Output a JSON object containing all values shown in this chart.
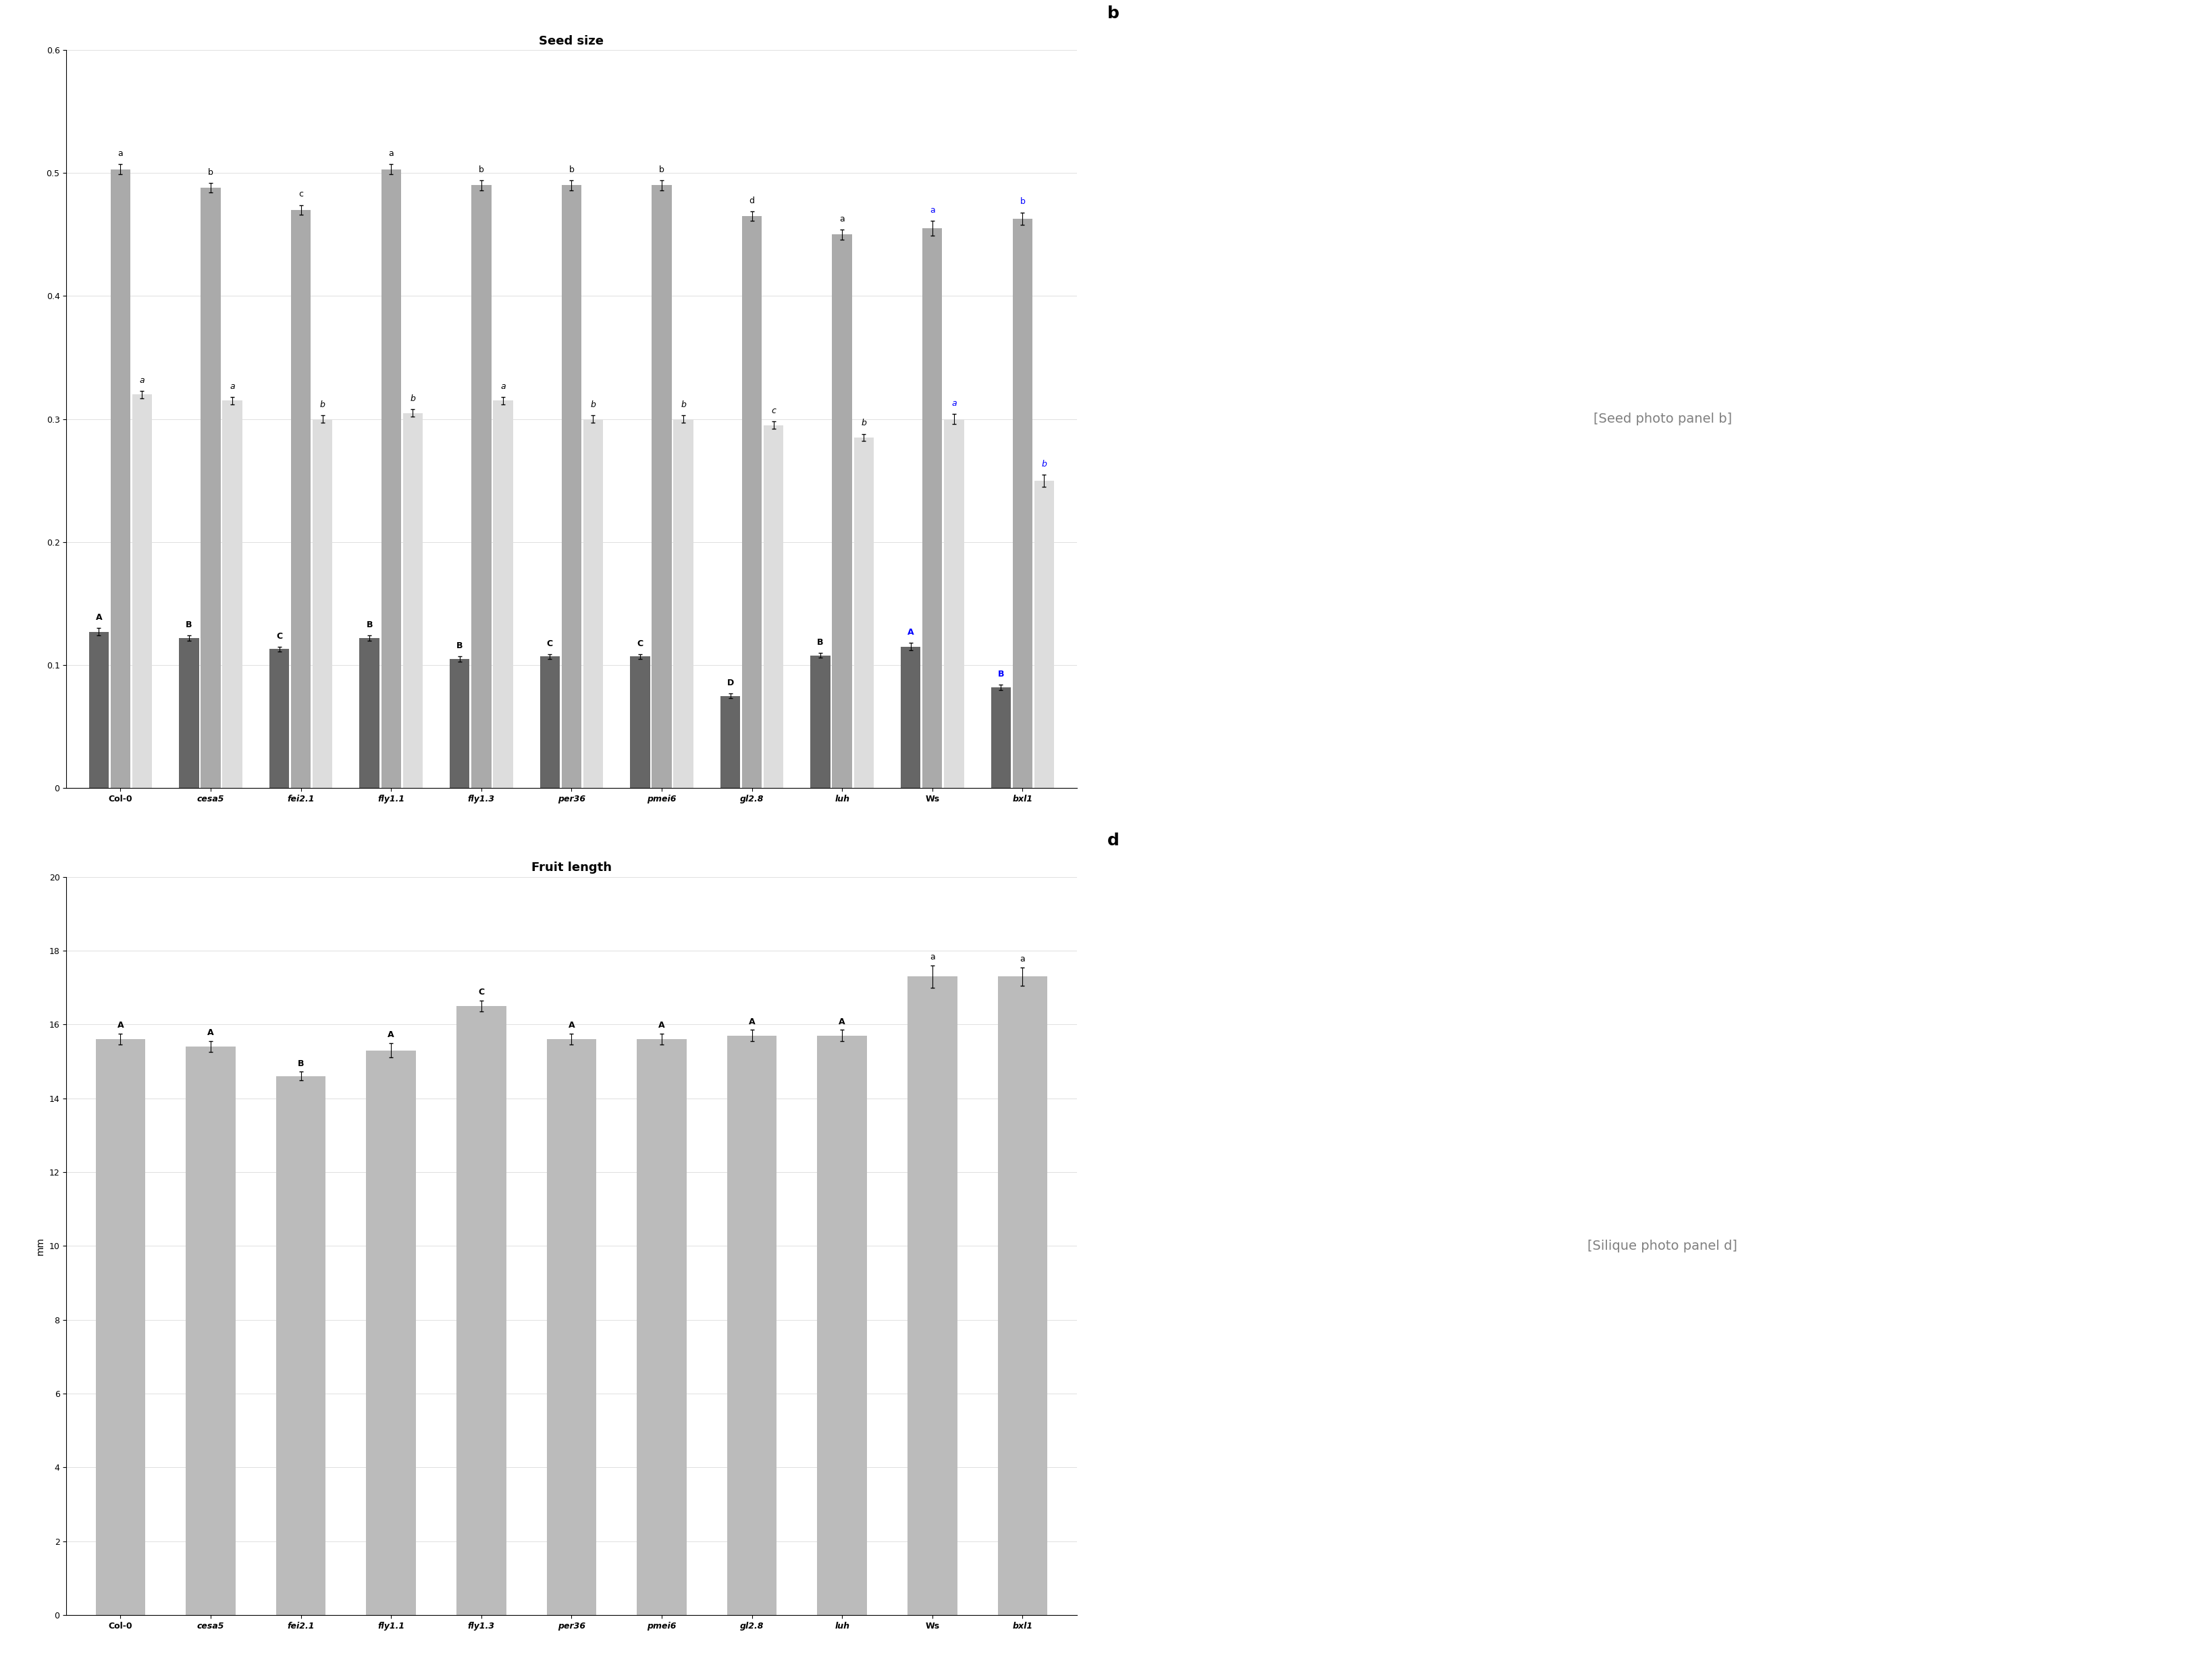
{
  "categories_a": [
    "Col-0",
    "cesa5",
    "fei2.1",
    "fly1.1",
    "fly1.3",
    "per36",
    "pmei6",
    "gl2.8",
    "luh",
    "Ws",
    "bxl1"
  ],
  "area_values": [
    0.127,
    0.122,
    0.113,
    0.122,
    0.105,
    0.107,
    0.107,
    0.075,
    0.108,
    0.115,
    0.082
  ],
  "length_values": [
    0.503,
    0.488,
    0.47,
    0.503,
    0.49,
    0.49,
    0.49,
    0.465,
    0.45,
    0.455,
    0.463
  ],
  "width_values": [
    0.32,
    0.315,
    0.3,
    0.305,
    0.315,
    0.3,
    0.3,
    0.295,
    0.285,
    0.3,
    0.25
  ],
  "area_labels": [
    "A",
    "B",
    "C",
    "B",
    "B",
    "C",
    "C",
    "D",
    "B",
    "A",
    "B"
  ],
  "length_labels": [
    "a",
    "b",
    "c",
    "a",
    "b",
    "b",
    "b",
    "d",
    "a",
    "a",
    "b"
  ],
  "width_labels": [
    "a",
    "a",
    "b",
    "b",
    "a",
    "b",
    "b",
    "c",
    "b",
    "a",
    "b"
  ],
  "ws_bxl1_area_labels_color": "blue",
  "ws_bxl1_length_labels_color": "blue",
  "ws_bxl1_width_labels_color": "blue",
  "area_err": [
    0.003,
    0.002,
    0.002,
    0.002,
    0.002,
    0.002,
    0.002,
    0.002,
    0.002,
    0.003,
    0.002
  ],
  "length_err": [
    0.004,
    0.004,
    0.004,
    0.004,
    0.004,
    0.004,
    0.004,
    0.004,
    0.004,
    0.006,
    0.005
  ],
  "width_err": [
    0.003,
    0.003,
    0.003,
    0.003,
    0.003,
    0.003,
    0.003,
    0.003,
    0.003,
    0.004,
    0.005
  ],
  "title_a": "Seed size",
  "ylabel_a": "",
  "ylim_a": [
    0,
    0.6
  ],
  "yticks_a": [
    0,
    0.1,
    0.2,
    0.3,
    0.4,
    0.5,
    0.6
  ],
  "color_area": "#666666",
  "color_length": "#aaaaaa",
  "color_width": "#dddddd",
  "categories_c": [
    "Col-0",
    "cesa5",
    "fei2.1",
    "fly1.1",
    "fly1.3",
    "per36",
    "pmei6",
    "gl2.8",
    "luh",
    "Ws",
    "bxl1"
  ],
  "fruit_values": [
    15.6,
    15.4,
    14.6,
    15.3,
    16.5,
    15.6,
    15.6,
    15.7,
    15.7,
    17.3,
    17.3
  ],
  "fruit_err": [
    0.15,
    0.15,
    0.12,
    0.2,
    0.15,
    0.15,
    0.15,
    0.15,
    0.15,
    0.3,
    0.25
  ],
  "fruit_labels": [
    "A",
    "A",
    "B",
    "A",
    "C",
    "A",
    "A",
    "A",
    "A",
    "a",
    "a"
  ],
  "fruit_label_colors": [
    "black",
    "black",
    "black",
    "black",
    "black",
    "black",
    "black",
    "black",
    "black",
    "black",
    "black"
  ],
  "color_fruit": "#bbbbbb",
  "title_c": "Fruit length",
  "ylabel_c": "mm",
  "ylim_c": [
    0,
    20
  ],
  "yticks_c": [
    0,
    2,
    4,
    6,
    8,
    10,
    12,
    14,
    16,
    18,
    20
  ]
}
